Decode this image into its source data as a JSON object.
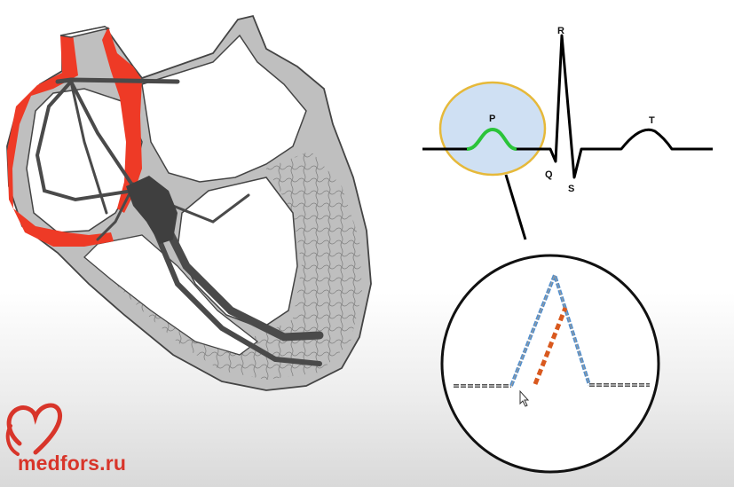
{
  "ecg": {
    "labels": {
      "p": "P",
      "q": "Q",
      "r": "R",
      "s": "S",
      "t": "T"
    },
    "highlight_wave": "P"
  },
  "logo": {
    "text": "medfors.ru",
    "icon": "heart-logo-icon"
  },
  "colors": {
    "atrial_highlight": "#ee3a26",
    "conduction_system": "#4a4a4a",
    "p_wave": "#2bc43a",
    "zoom_circle_fill": "#cfe0f3",
    "zoom_circle_border": "#e6b93a",
    "dashed_blue": "#4f8fd0",
    "dashed_orange": "#d9591e",
    "logo": "#d8352a"
  }
}
